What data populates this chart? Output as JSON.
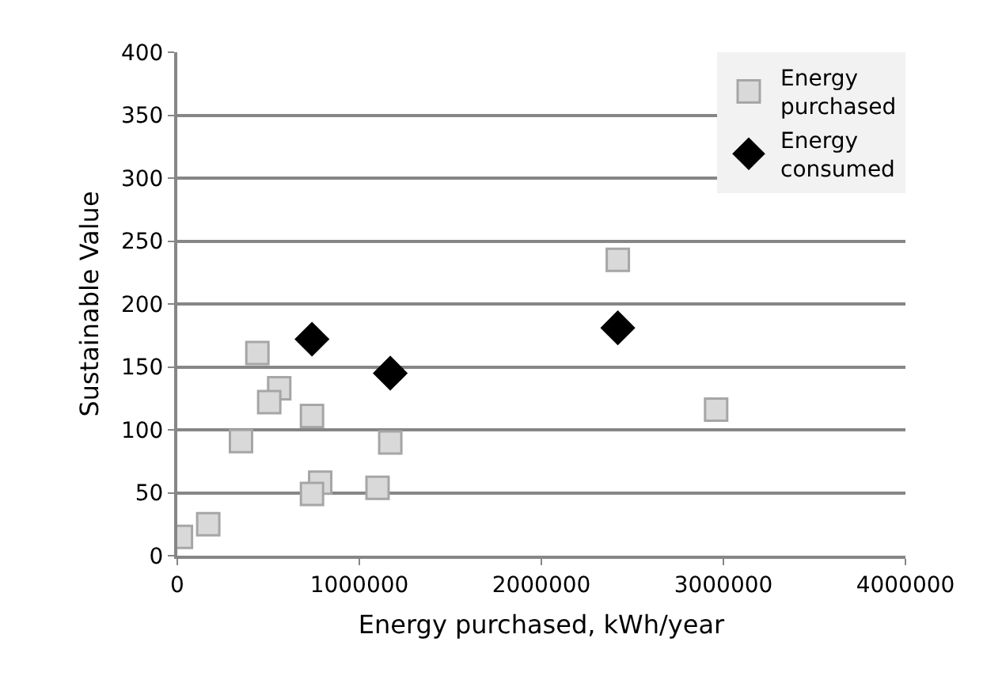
{
  "chart_data": {
    "type": "scatter",
    "xlabel": "Energy purchased, kWh/year",
    "ylabel": "Sustainable Value",
    "xlim": [
      0,
      4000000
    ],
    "xticks": [
      0,
      1000000,
      2000000,
      3000000,
      4000000
    ],
    "ylim": [
      0,
      400
    ],
    "yticks": [
      0,
      50,
      100,
      150,
      200,
      250,
      300,
      350,
      400
    ],
    "grid": "y",
    "legend": "top right",
    "series": [
      {
        "name": "Energy purchased",
        "color": "#d9d9d9",
        "marker": "square",
        "x": [
          20000,
          170000,
          350000,
          440000,
          560000,
          505000,
          740000,
          785000,
          740000,
          1100000,
          1170000,
          2420000,
          2960000
        ],
        "values": [
          15,
          25,
          91,
          161,
          133,
          122,
          111,
          58,
          49,
          54,
          90,
          235,
          116
        ]
      },
      {
        "name": "Energy consumed",
        "color": "#000000",
        "marker": "diamond",
        "x": [
          740000,
          1170000,
          2420000
        ],
        "values": [
          172,
          145,
          181
        ]
      }
    ]
  }
}
